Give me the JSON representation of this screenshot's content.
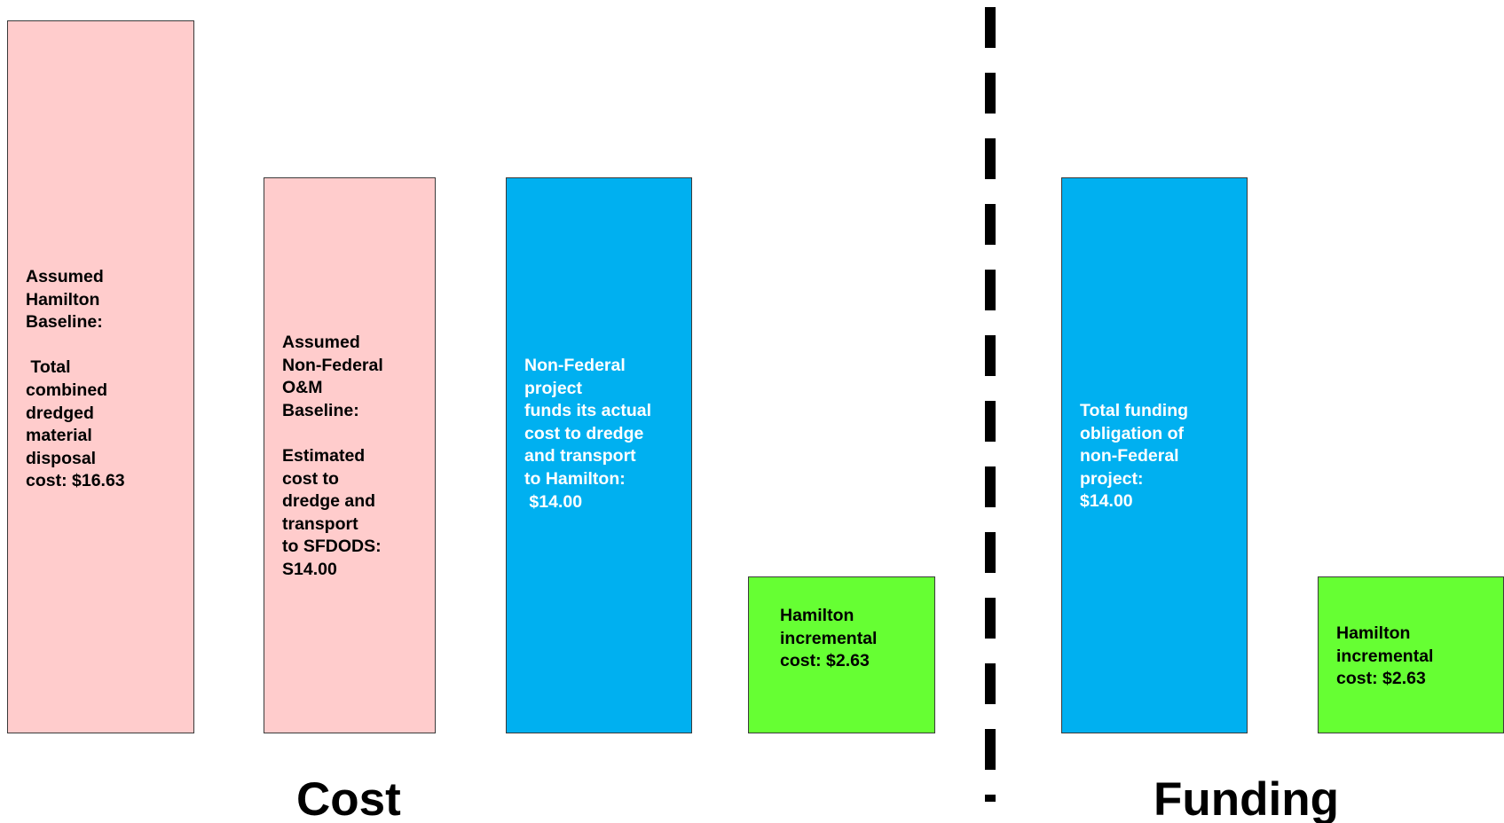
{
  "boxes": {
    "baseline": "Assumed\nHamilton\nBaseline:\n\n Total\ncombined\ndredged\nmaterial\ndisposal\ncost: $16.63",
    "nonfed_om": "Assumed\nNon-Federal\nO&M\nBaseline:\n\nEstimated\ncost to\ndredge and\ntransport\nto SFDODS:\nS14.00",
    "nonfed_project": "Non-Federal\nproject\nfunds its actual\ncost to dredge\nand transport\nto Hamilton:\n $14.00",
    "incremental_cost": "Hamilton\nincremental\ncost: $2.63",
    "funding_obligation": "Total funding\nobligation of\nnon-Federal\nproject:\n$14.00",
    "incremental_funding": "Hamilton\nincremental\ncost: $2.63"
  },
  "labels": {
    "cost": "Cost",
    "funding": "Funding"
  },
  "colors": {
    "pink": "#ffcccc",
    "blue": "#00b0f0",
    "green": "#66ff33",
    "divider": "#000000"
  }
}
